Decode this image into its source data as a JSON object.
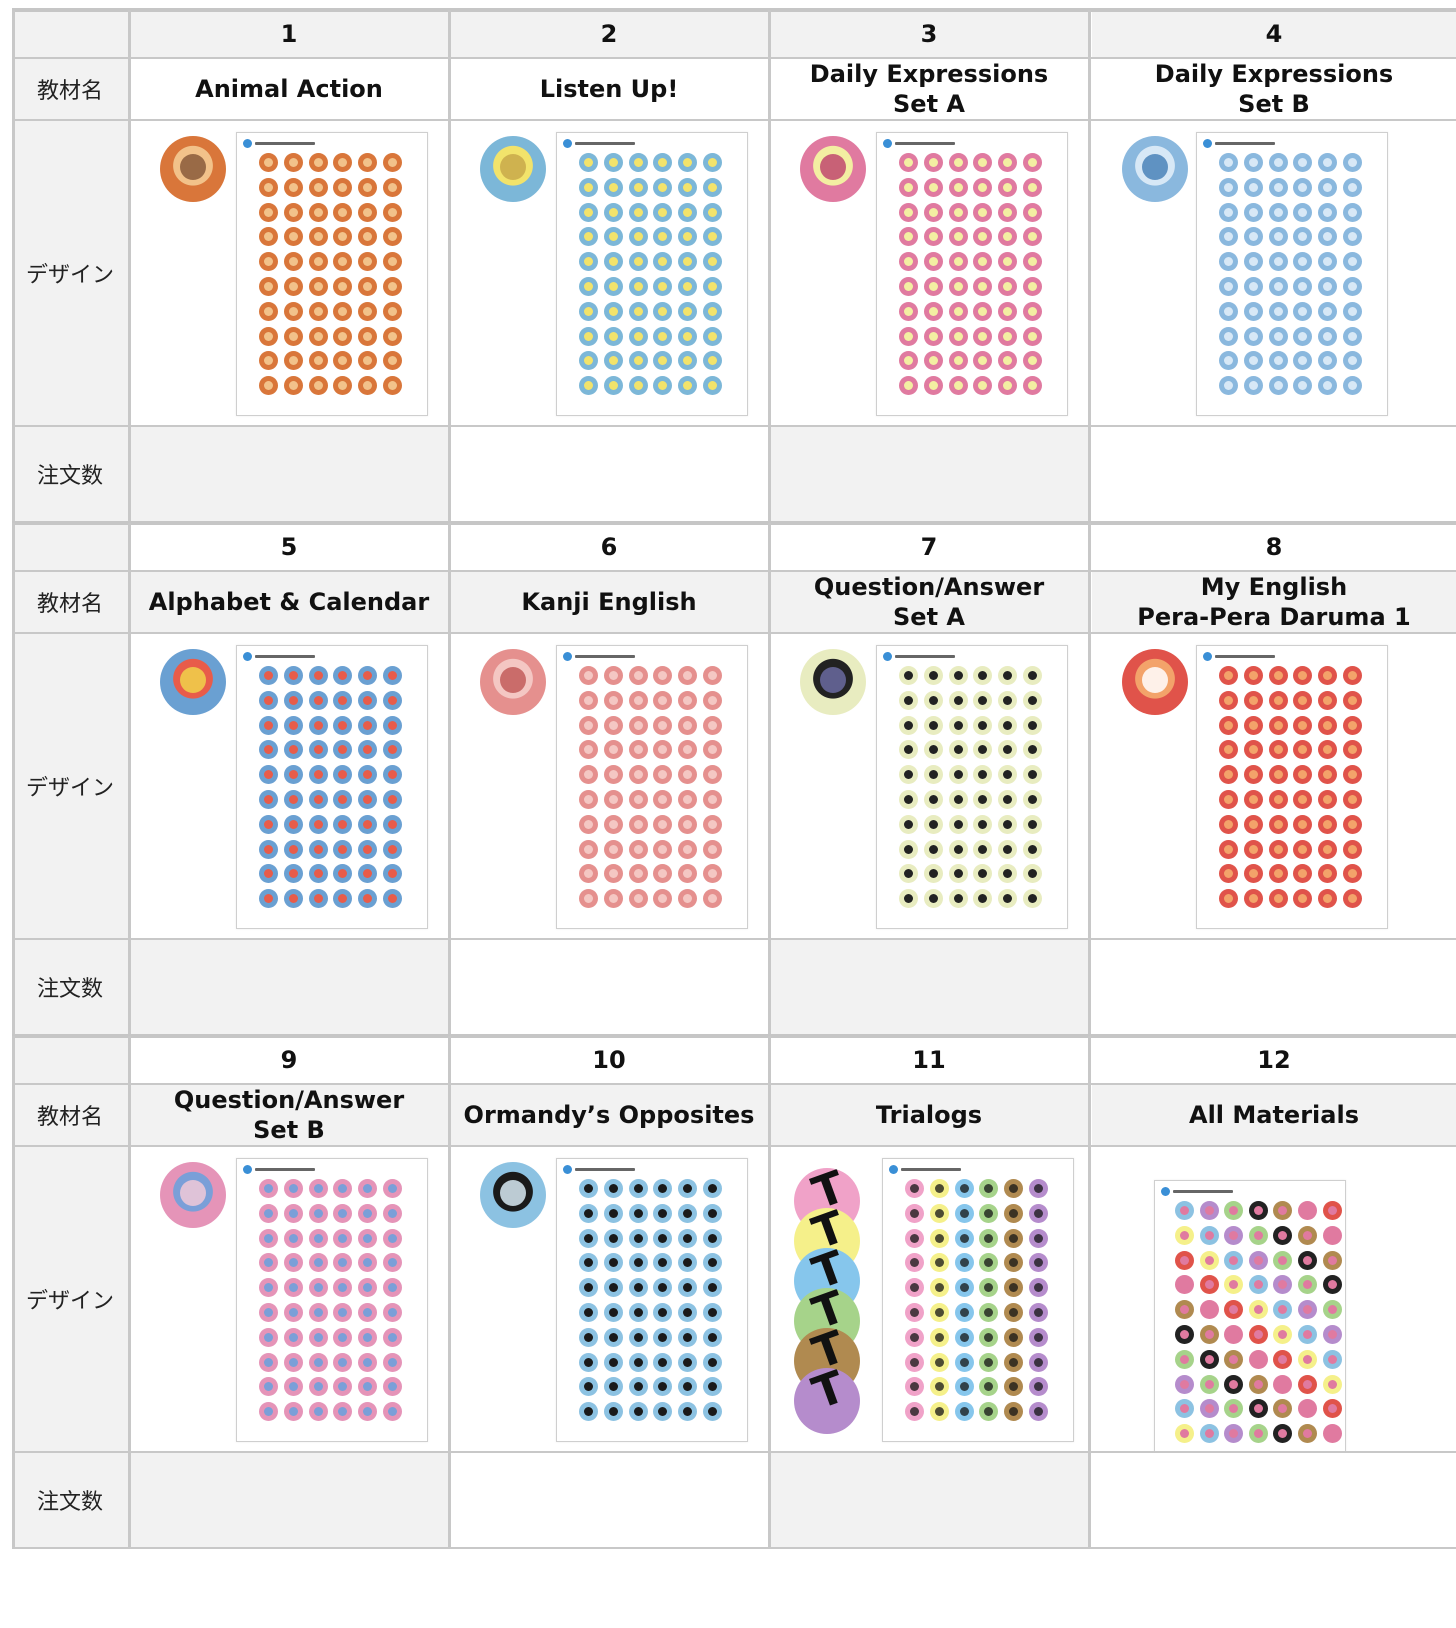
{
  "row_labels": {
    "number": "",
    "material_name": "教材名",
    "design": "デザイン",
    "order_qty": "注文数"
  },
  "blocks": [
    {
      "items": [
        {
          "number": "1",
          "title": "Animal Action",
          "colors": {
            "a": "#d9763a",
            "b": "#f2c28a",
            "c": "#8a5a3a"
          }
        },
        {
          "number": "2",
          "title": "Listen Up!",
          "colors": {
            "a": "#7cb7d8",
            "b": "#f2e36b",
            "c": "#c9a94a"
          }
        },
        {
          "number": "3",
          "title": "Daily Expressions\nSet A",
          "colors": {
            "a": "#e07aa0",
            "b": "#f3efa2",
            "c": "#c0486e"
          }
        },
        {
          "number": "4",
          "title": "Daily Expressions\nSet B",
          "colors": {
            "a": "#8ab8de",
            "b": "#d7e8f6",
            "c": "#4a82b8"
          }
        }
      ]
    },
    {
      "items": [
        {
          "number": "5",
          "title": "Alphabet & Calendar",
          "colors": {
            "a": "#6aa0d2",
            "b": "#e85c4a",
            "c": "#f0d24a"
          }
        },
        {
          "number": "6",
          "title": "Kanji English",
          "colors": {
            "a": "#e5908e",
            "b": "#f4c7c3",
            "c": "#c25c5a"
          }
        },
        {
          "number": "7",
          "title": "Question/Answer\nSet A",
          "colors": {
            "a": "#e8ecc0",
            "b": "#222222",
            "c": "#6a6aa0"
          }
        },
        {
          "number": "8",
          "title": "My English\nPera-Pera Daruma 1",
          "colors": {
            "a": "#e0534a",
            "b": "#f3a36a",
            "c": "#ffffff"
          }
        }
      ]
    },
    {
      "items": [
        {
          "number": "9",
          "title": "Question/Answer\nSet B",
          "colors": {
            "a": "#e594b8",
            "b": "#7a9fd8",
            "c": "#f1c9d8"
          }
        },
        {
          "number": "10",
          "title": "Ormandy’s Opposites",
          "colors": {
            "a": "#8cc2e2",
            "b": "#1a1a1a",
            "c": "#d9ebf5"
          }
        },
        {
          "number": "11",
          "title": "Trialogs",
          "colors": {
            "a": "#f0a2c8",
            "b": "#f5f08a",
            "c": "#86c6ec",
            "d": "#a6d38a",
            "e": "#b08a50",
            "f": "#b58ccc"
          }
        },
        {
          "number": "12",
          "title": "All Materials",
          "colors": {
            "a": "#8cc2e2",
            "b": "#e07aa0",
            "c": "#a6d38a"
          }
        }
      ]
    }
  ]
}
